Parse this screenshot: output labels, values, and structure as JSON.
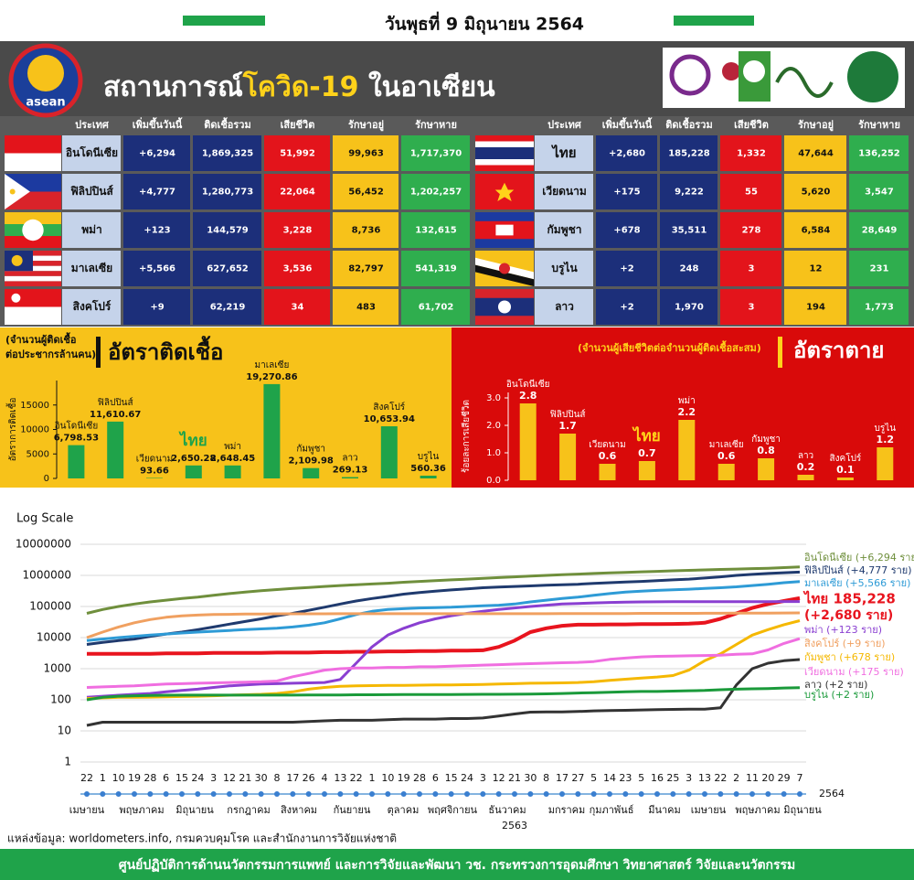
{
  "header": {
    "date": "วันพุธที่ 9 มิถุนายน 2564",
    "title_1": "สถานการณ์",
    "title_2": "โควิด-19",
    "title_3": " ในอาเซียน",
    "logo": "asean"
  },
  "table": {
    "columns": [
      "ประเทศ",
      "เพิ่มขึ้นวันนี้",
      "ติดเชื้อรวม",
      "เสียชีวิต",
      "รักษาอยู่",
      "รักษาหาย"
    ],
    "left": [
      [
        "อินโดนีเซีย",
        "+6,294",
        "1,869,325",
        "51,992",
        "99,963",
        "1,717,370"
      ],
      [
        "ฟิลิปปินส์",
        "+4,777",
        "1,280,773",
        "22,064",
        "56,452",
        "1,202,257"
      ],
      [
        "พม่า",
        "+123",
        "144,579",
        "3,228",
        "8,736",
        "132,615"
      ],
      [
        "มาเลเซีย",
        "+5,566",
        "627,652",
        "3,536",
        "82,797",
        "541,319"
      ],
      [
        "สิงคโปร์",
        "+9",
        "62,219",
        "34",
        "483",
        "61,702"
      ]
    ],
    "right": [
      [
        "ไทย",
        "+2,680",
        "185,228",
        "1,332",
        "47,644",
        "136,252"
      ],
      [
        "เวียดนาม",
        "+175",
        "9,222",
        "55",
        "5,620",
        "3,547"
      ],
      [
        "กัมพูชา",
        "+678",
        "35,511",
        "278",
        "6,584",
        "28,649"
      ],
      [
        "บรูไน",
        "+2",
        "248",
        "3",
        "12",
        "231"
      ],
      [
        "ลาว",
        "+2",
        "1,970",
        "3",
        "194",
        "1,773"
      ]
    ]
  },
  "chart_data": [
    {
      "type": "bar",
      "title": "อัตราติดเชื้อ",
      "subtitle_lines": [
        "(จำนวนผู้ติดเชื้อ",
        "ต่อประชากรล้านคน)"
      ],
      "y_label": "อัตราการติดเชื้อ",
      "categories": [
        "อินโดนีเซีย",
        "ฟิลิปปินส์",
        "เวียดนาม",
        "ไทย",
        "พม่า",
        "มาเลเซีย",
        "กัมพูชา",
        "ลาว",
        "สิงคโปร์",
        "บรูไน"
      ],
      "values": [
        6798.53,
        11610.67,
        93.66,
        2650.28,
        2648.45,
        19270.86,
        2109.98,
        269.13,
        10653.94,
        560.36
      ],
      "value_labels": [
        "6,798.53",
        "11,610.67",
        "93.66",
        "2,650.28",
        "2,648.45",
        "19,270.86",
        "2,109.98",
        "269.13",
        "10,653.94",
        "560.36"
      ],
      "highlight": "ไทย",
      "color": "#1fa34a",
      "background": "#f7c21a",
      "ylim": [
        0,
        20000
      ],
      "yticks": [
        0,
        5000,
        10000,
        15000
      ]
    },
    {
      "type": "bar",
      "title": "อัตราตาย",
      "subtitle_lines": [
        "(จำนวนผู้เสียชีวิตต่อจำนวนผู้ติดเชื้อสะสม)"
      ],
      "y_label": "ร้อยละการเสียชีวิต",
      "categories": [
        "อินโดนีเซีย",
        "ฟิลิปปินส์",
        "เวียดนาม",
        "ไทย",
        "พม่า",
        "มาเลเซีย",
        "กัมพูชา",
        "ลาว",
        "สิงคโปร์",
        "บรูไน"
      ],
      "values": [
        2.8,
        1.7,
        0.6,
        0.7,
        2.2,
        0.6,
        0.8,
        0.2,
        0.1,
        1.2
      ],
      "highlight": "ไทย",
      "color": "#f7c21a",
      "background": "#d90a0a",
      "ylim": [
        0,
        3.2
      ],
      "yticks": [
        {
          "value": 0,
          "label": "0.0"
        },
        {
          "value": 1,
          "label": "1.0"
        },
        {
          "value": 2,
          "label": "2.0"
        },
        {
          "value": 3,
          "label": "3.0"
        }
      ]
    },
    {
      "type": "line",
      "title": "Log Scale",
      "log_scale": true,
      "grid": true,
      "categories": [
        "22",
        "1",
        "10",
        "19",
        "28",
        "6",
        "15",
        "24",
        "3",
        "12",
        "21",
        "30",
        "8",
        "17",
        "26",
        "4",
        "13",
        "22",
        "1",
        "10",
        "19",
        "28",
        "6",
        "15",
        "24",
        "3",
        "12",
        "21",
        "30",
        "8",
        "17",
        "27",
        "5",
        "14",
        "23",
        "5",
        "16",
        "25",
        "3",
        "13",
        "22",
        "2",
        "11",
        "20",
        "29",
        "7"
      ],
      "month_labels": [
        "เมษายน",
        "พฤษภาคม",
        "มิถุนายน",
        "กรกฎาคม",
        "สิงหาคม",
        "กันยายน",
        "ตุลาคม",
        "พฤศจิกายน",
        "ธันวาคม",
        "มกราคม",
        "กุมภาพันธ์",
        "มีนาคม",
        "เมษายน",
        "พฤษภาคม",
        "มิถุนายน"
      ],
      "year_labels": [
        "2563",
        "2564"
      ],
      "annotations": [
        "(+2,680 ราย)"
      ],
      "ylim": [
        1,
        10000000
      ],
      "yticks": [
        1,
        10,
        100,
        1000,
        10000,
        100000,
        1000000,
        10000000
      ],
      "series": [
        {
          "name": "อินโดนีเซีย (+6,294  ราย)",
          "color": "#6f8f3c",
          "values": [
            60000,
            80000,
            100000,
            120000,
            140000,
            160000,
            180000,
            200000,
            230000,
            260000,
            290000,
            320000,
            350000,
            380000,
            410000,
            440000,
            470000,
            500000,
            530000,
            560000,
            600000,
            640000,
            680000,
            720000,
            760000,
            800000,
            850000,
            900000,
            950000,
            1000000,
            1050000,
            1100000,
            1150000,
            1200000,
            1250000,
            1300000,
            1350000,
            1400000,
            1450000,
            1500000,
            1550000,
            1600000,
            1650000,
            1700000,
            1780000,
            1870000
          ]
        },
        {
          "name": "ฟิลิปปินส์ (+4,777 ราย)",
          "color": "#1f3a6e",
          "values": [
            6000,
            7000,
            8000,
            9000,
            11000,
            13000,
            15000,
            18000,
            22000,
            27000,
            33000,
            40000,
            50000,
            60000,
            75000,
            95000,
            120000,
            150000,
            180000,
            210000,
            250000,
            280000,
            310000,
            340000,
            370000,
            400000,
            420000,
            440000,
            460000,
            480000,
            500000,
            520000,
            550000,
            580000,
            610000,
            640000,
            680000,
            720000,
            760000,
            820000,
            900000,
            1000000,
            1080000,
            1150000,
            1220000,
            1280000
          ]
        },
        {
          "name": "มาเลเซีย (+5,566 ราย)",
          "color": "#2e9bd6",
          "values": [
            8000,
            9000,
            10000,
            11000,
            12000,
            13000,
            14000,
            15000,
            16000,
            17000,
            18000,
            19000,
            20000,
            22000,
            25000,
            30000,
            40000,
            55000,
            70000,
            80000,
            85000,
            90000,
            92000,
            95000,
            100000,
            105000,
            110000,
            120000,
            140000,
            160000,
            180000,
            200000,
            230000,
            260000,
            290000,
            310000,
            330000,
            345000,
            360000,
            380000,
            400000,
            430000,
            470000,
            520000,
            580000,
            630000
          ]
        },
        {
          "name": "ไทย 185,228",
          "color": "#e8141e",
          "values": [
            3000,
            3000,
            3000,
            3000,
            3000,
            3100,
            3100,
            3100,
            3200,
            3200,
            3200,
            3200,
            3300,
            3300,
            3300,
            3400,
            3400,
            3500,
            3500,
            3600,
            3600,
            3700,
            3700,
            3800,
            3800,
            3900,
            5000,
            8000,
            15000,
            20000,
            24000,
            26000,
            26000,
            26500,
            26500,
            27000,
            27000,
            27500,
            28000,
            30000,
            40000,
            60000,
            90000,
            120000,
            150000,
            185000
          ]
        },
        {
          "name": "พม่า (+123 ราย)",
          "color": "#8a3fd1",
          "values": [
            120,
            130,
            140,
            150,
            160,
            180,
            200,
            220,
            250,
            280,
            300,
            320,
            330,
            340,
            350,
            360,
            450,
            1500,
            5000,
            12000,
            20000,
            30000,
            40000,
            50000,
            60000,
            70000,
            80000,
            90000,
            100000,
            110000,
            120000,
            125000,
            130000,
            135000,
            138000,
            140000,
            141000,
            142000,
            142000,
            142000,
            142000,
            143000,
            143000,
            143000,
            144000,
            144600
          ]
        },
        {
          "name": "สิงคโปร์ (+9 ราย)",
          "color": "#f0a060",
          "values": [
            10000,
            15000,
            22000,
            30000,
            38000,
            45000,
            50000,
            53000,
            55000,
            56000,
            57000,
            57500,
            58000,
            58000,
            58000,
            58000,
            58500,
            58500,
            58500,
            58500,
            58500,
            58500,
            58500,
            58500,
            58500,
            58500,
            58500,
            58500,
            58500,
            58500,
            59000,
            59000,
            59000,
            59500,
            59500,
            60000,
            60000,
            60000,
            60000,
            60500,
            60500,
            61000,
            61000,
            61500,
            62000,
            62200
          ]
        },
        {
          "name": "กัมพูชา (+678 ราย)",
          "color": "#f5b800",
          "values": [
            110,
            115,
            120,
            120,
            122,
            125,
            128,
            130,
            135,
            140,
            145,
            150,
            160,
            180,
            220,
            250,
            270,
            280,
            285,
            290,
            290,
            295,
            300,
            300,
            305,
            310,
            320,
            330,
            340,
            345,
            350,
            360,
            380,
            420,
            460,
            500,
            540,
            600,
            900,
            1800,
            3000,
            6000,
            12000,
            18000,
            26000,
            35000
          ]
        },
        {
          "name": "เวียดนาม (+175 ราย)",
          "color": "#f06ee0",
          "values": [
            250,
            260,
            270,
            280,
            300,
            320,
            330,
            340,
            350,
            360,
            370,
            380,
            400,
            550,
            700,
            900,
            1000,
            1050,
            1050,
            1100,
            1100,
            1150,
            1150,
            1200,
            1250,
            1300,
            1350,
            1400,
            1450,
            1500,
            1550,
            1600,
            1700,
            2000,
            2200,
            2400,
            2500,
            2550,
            2600,
            2650,
            2700,
            2900,
            3000,
            4000,
            6500,
            9200
          ]
        },
        {
          "name": "ลาว (+2 ราย)",
          "color": "#333333",
          "values": [
            15,
            19,
            19,
            19,
            19,
            19,
            19,
            19,
            19,
            19,
            19,
            19,
            19,
            19,
            20,
            21,
            22,
            22,
            22,
            23,
            24,
            24,
            24,
            25,
            25,
            26,
            30,
            35,
            40,
            41,
            41,
            42,
            44,
            45,
            46,
            47,
            48,
            49,
            50,
            50,
            55,
            300,
            1000,
            1500,
            1800,
            1970
          ]
        },
        {
          "name": "บรูไน (+2 ราย)",
          "color": "#1a9a3a",
          "values": [
            100,
            120,
            130,
            135,
            138,
            140,
            141,
            141,
            141,
            141,
            141,
            141,
            141,
            141,
            142,
            142,
            143,
            145,
            145,
            146,
            147,
            148,
            148,
            148,
            149,
            150,
            150,
            151,
            152,
            155,
            160,
            165,
            170,
            175,
            180,
            185,
            185,
            190,
            195,
            200,
            210,
            220,
            225,
            230,
            240,
            246
          ]
        }
      ]
    }
  ],
  "source": "แหล่งข้อมูล: worldometers.info, กรมควบคุมโรค และสำนักงานการวิจัยแห่งชาติ",
  "footer": "ศูนย์ปฏิบัติการด้านนวัตกรรมการแพทย์ และการวิจัยและพัฒนา วช.  กระทรวงการอุดมศึกษา วิทยาศาสตร์ วิจัยและนวัตกรรม"
}
